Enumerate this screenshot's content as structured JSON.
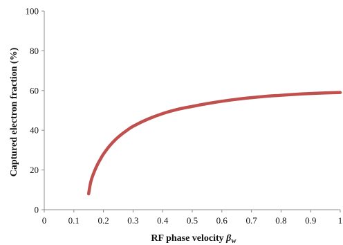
{
  "chart_data": {
    "type": "line",
    "xlabel": "RF phase velocity ",
    "xlabel_symbol": "β",
    "xlabel_subscript": "w",
    "ylabel": "Captured electron fraction (%)",
    "xlim": [
      0,
      1
    ],
    "ylim": [
      0,
      100
    ],
    "x_ticks": [
      "0",
      "0.1",
      "0.2",
      "0.3",
      "0.4",
      "0.5",
      "0.6",
      "0.7",
      "0.8",
      "0.9",
      "1"
    ],
    "y_ticks": [
      "0",
      "20",
      "40",
      "60",
      "80",
      "100"
    ],
    "grid": false,
    "legend": "none",
    "series": [
      {
        "color": "#c0504d",
        "x": [
          0.15,
          0.155,
          0.16,
          0.17,
          0.18,
          0.19,
          0.2,
          0.22,
          0.24,
          0.26,
          0.28,
          0.3,
          0.35,
          0.4,
          0.45,
          0.5,
          0.55,
          0.6,
          0.65,
          0.7,
          0.75,
          0.8,
          0.85,
          0.9,
          0.95,
          1.0
        ],
        "y": [
          8,
          12.5,
          15.5,
          19.5,
          22.8,
          25.5,
          28,
          32,
          35.2,
          37.8,
          40,
          42,
          45.6,
          48.4,
          50.5,
          52,
          53.4,
          54.6,
          55.6,
          56.4,
          57.1,
          57.6,
          58.1,
          58.5,
          58.8,
          59
        ]
      }
    ]
  }
}
